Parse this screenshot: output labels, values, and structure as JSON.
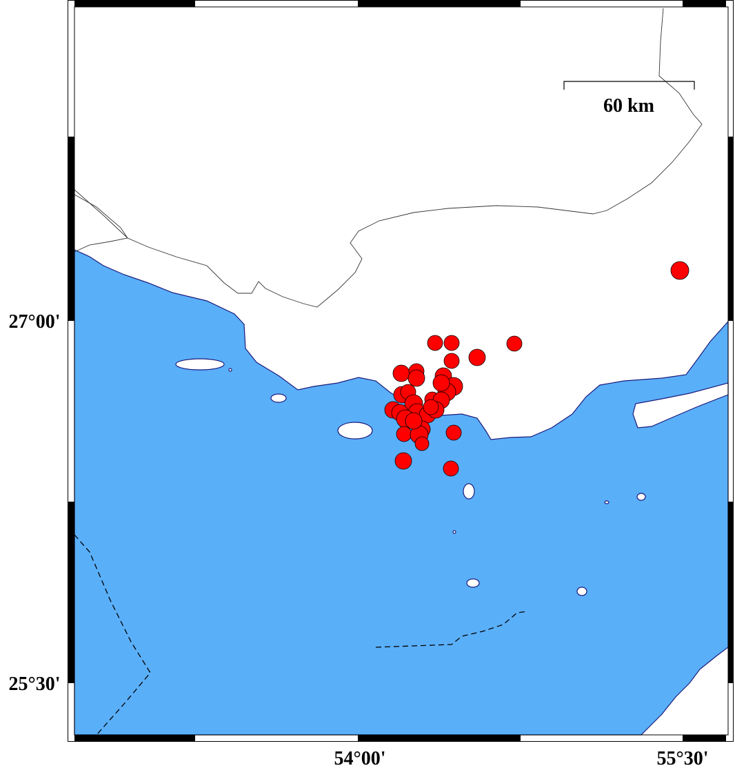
{
  "map": {
    "scale_label": "60 km",
    "lat_labels": [
      "27°00'",
      "25°30'"
    ],
    "lon_labels": [
      "54°00'",
      "55°30'"
    ]
  }
}
